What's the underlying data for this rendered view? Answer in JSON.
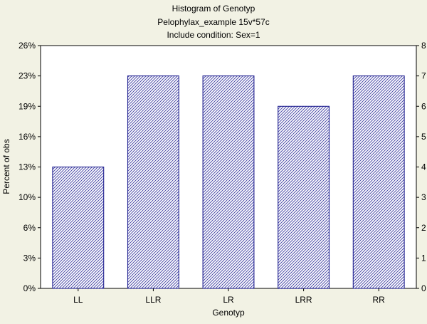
{
  "chart_data": {
    "type": "bar",
    "title": "Histogram of Genotyp",
    "subtitle_lines": [
      "Pelophylax_example 15v*57c",
      "Include condition: Sex=1"
    ],
    "xlabel": "Genotyp",
    "ylabel": "Percent of obs",
    "categories": [
      "LL",
      "LLR",
      "LR",
      "LRR",
      "RR"
    ],
    "series": [
      {
        "values": [
          4,
          7,
          7,
          6,
          7
        ]
      }
    ],
    "y_left_ticks": [
      "0%",
      "3%",
      "6%",
      "10%",
      "13%",
      "16%",
      "19%",
      "23%",
      "26%"
    ],
    "y_right_ticks": [
      "0",
      "1",
      "2",
      "3",
      "4",
      "5",
      "6",
      "7",
      "8"
    ],
    "ylim": [
      0,
      8
    ],
    "grid": false,
    "bar_fill": "hatched",
    "colors": {
      "background": "#F2F2E4",
      "plot_background": "#FFFFFF",
      "bar_stroke": "#1F1F8F",
      "hatch": "#3A3AA0"
    }
  }
}
